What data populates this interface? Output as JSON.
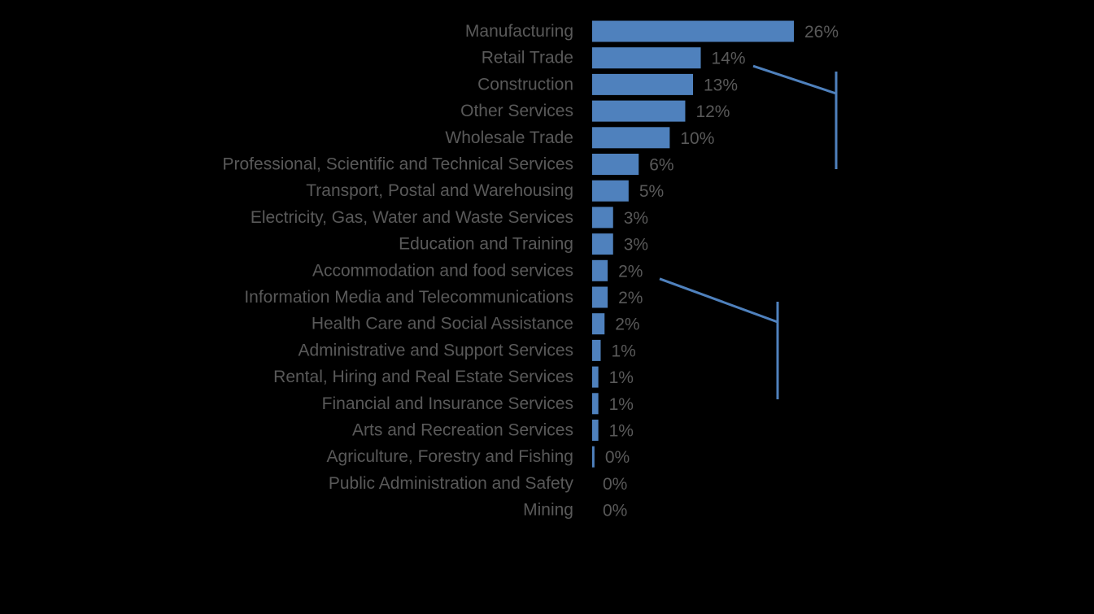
{
  "chart_data": {
    "type": "bar",
    "orientation": "horizontal",
    "categories": [
      "Manufacturing",
      "Retail Trade",
      "Construction",
      "Other Services",
      "Wholesale Trade",
      "Professional, Scientific and Technical Services",
      "Transport, Postal and Warehousing",
      "Electricity, Gas, Water and Waste Services",
      "Education and Training",
      "Accommodation and food services",
      "Information Media and Telecommunications",
      "Health Care and Social Assistance",
      "Administrative and Support Services",
      "Rental, Hiring and Real Estate Services",
      "Financial and Insurance Services",
      "Arts and Recreation Services",
      "Agriculture, Forestry and Fishing",
      "Public Administration and Safety",
      "Mining"
    ],
    "values": [
      26,
      14,
      13,
      12,
      10,
      6,
      5,
      3,
      3,
      2,
      2,
      2,
      1,
      1,
      1,
      1,
      0,
      0,
      0
    ],
    "bar_values": [
      26,
      14,
      13,
      12,
      10,
      6,
      4.7,
      2.7,
      2.7,
      2,
      2,
      1.6,
      1.1,
      0.8,
      0.8,
      0.8,
      0.3,
      0,
      0
    ],
    "data_labels": [
      "26%",
      "14%",
      "13%",
      "12%",
      "10%",
      "6%",
      "5%",
      "3%",
      "3%",
      "2%",
      "2%",
      "2%",
      "1%",
      "1%",
      "1%",
      "1%",
      "0%",
      "0%",
      "0%"
    ],
    "unit": "%",
    "xlim": [
      0,
      26
    ],
    "grid": false,
    "legend": "none",
    "title": "",
    "xlabel": "",
    "ylabel": "",
    "annotations": [
      {
        "kind": "bracket",
        "from_category": "Retail Trade",
        "span": [
          "Retail Trade",
          "Professional, Scientific and Technical Services"
        ]
      },
      {
        "kind": "bracket",
        "from_category": "Accommodation and food services",
        "span": [
          "Information Media and Telecommunications",
          "Financial and Insurance Services"
        ]
      }
    ],
    "colors": {
      "background": "#000000",
      "bar": "#4F81BD",
      "text": "#595959",
      "annotation": "#4F81BD"
    }
  }
}
